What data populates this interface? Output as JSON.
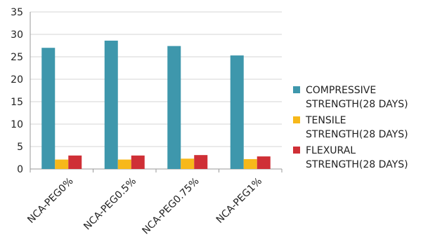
{
  "chart_data": {
    "type": "bar",
    "title": "",
    "xlabel": "",
    "ylabel": "",
    "categories": [
      "NCA-PEG0%",
      "NCA-PEG0.5%",
      "NCA-PEG0.75%",
      "NCA-PEG1%"
    ],
    "ylim": [
      0,
      35
    ],
    "yticks": [
      0,
      5,
      10,
      15,
      20,
      25,
      30,
      35
    ],
    "grid": "horizontal",
    "legend_position": "right",
    "series": [
      {
        "name": "COMPRESSIVE STRENGTH(28 DAYS)",
        "name_lines": [
          "COMPRESSIVE",
          "STRENGTH(28 DAYS)"
        ],
        "color": "#3e97ac",
        "values": [
          27.0,
          28.6,
          27.4,
          25.3
        ]
      },
      {
        "name": "TENSILE STRENGTH(28 DAYS)",
        "name_lines": [
          "TENSILE",
          "STRENGTH(28 DAYS)"
        ],
        "color": "#f7b81a",
        "values": [
          2.1,
          2.1,
          2.3,
          2.2
        ]
      },
      {
        "name": "FLEXURAL STRENGTH(28 DAYS)",
        "name_lines": [
          "FLEXURAL",
          "STRENGTH(28 DAYS)"
        ],
        "color": "#cf2f36",
        "values": [
          3.0,
          3.0,
          3.1,
          2.8
        ]
      }
    ]
  }
}
